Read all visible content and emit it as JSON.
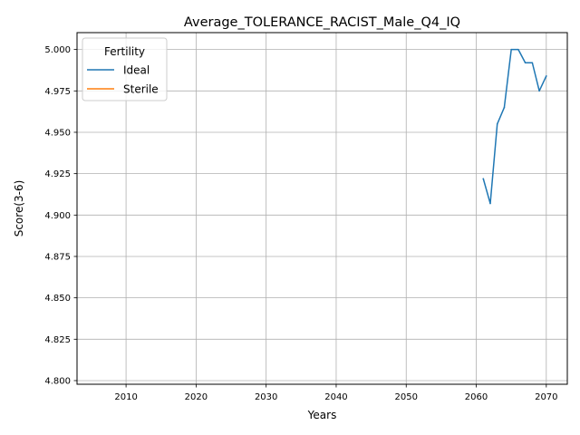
{
  "chart_data": {
    "type": "line",
    "title": "Average_TOLERANCE_RACIST_Male_Q4_IQ",
    "xlabel": "Years",
    "ylabel": "Score(3-6)",
    "xlim": [
      2003,
      2073
    ],
    "ylim": [
      4.7978,
      5.0102
    ],
    "xticks": [
      2010,
      2020,
      2030,
      2040,
      2050,
      2060,
      2070
    ],
    "yticks": [
      4.8,
      4.825,
      4.85,
      4.875,
      4.9,
      4.925,
      4.95,
      4.975,
      5.0
    ],
    "ytick_labels": [
      "4.800",
      "4.825",
      "4.850",
      "4.875",
      "4.900",
      "4.925",
      "4.950",
      "4.975",
      "5.000"
    ],
    "grid": true,
    "legend": {
      "title": "Fertility",
      "placement": "top-left"
    },
    "series": [
      {
        "name": "Ideal",
        "color": "#1f77b4",
        "x": [
          2061,
          2062,
          2063,
          2064,
          2065,
          2066,
          2067,
          2068,
          2069,
          2070
        ],
        "y": [
          4.922,
          4.907,
          4.955,
          4.965,
          5.0,
          5.0,
          4.992,
          4.992,
          4.975,
          4.984
        ]
      },
      {
        "name": "Sterile",
        "color": "#ff7f0e",
        "x": [],
        "y": []
      }
    ]
  }
}
